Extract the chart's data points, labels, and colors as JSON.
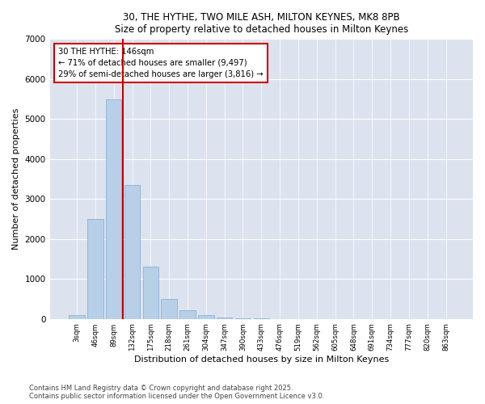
{
  "title1": "30, THE HYTHE, TWO MILE ASH, MILTON KEYNES, MK8 8PB",
  "title2": "Size of property relative to detached houses in Milton Keynes",
  "xlabel": "Distribution of detached houses by size in Milton Keynes",
  "ylabel": "Number of detached properties",
  "background_color": "#dce3ef",
  "bar_color": "#b8cfe8",
  "bar_edge_color": "#7aaad0",
  "categories": [
    "3sqm",
    "46sqm",
    "89sqm",
    "132sqm",
    "175sqm",
    "218sqm",
    "261sqm",
    "304sqm",
    "347sqm",
    "390sqm",
    "433sqm",
    "476sqm",
    "519sqm",
    "562sqm",
    "605sqm",
    "648sqm",
    "691sqm",
    "734sqm",
    "777sqm",
    "820sqm",
    "863sqm"
  ],
  "values": [
    100,
    2500,
    5500,
    3350,
    1300,
    490,
    215,
    95,
    42,
    18,
    5,
    3,
    0,
    0,
    0,
    0,
    0,
    0,
    0,
    0,
    0
  ],
  "vline_color": "#cc0000",
  "annotation_line1": "30 THE HYTHE: 146sqm",
  "annotation_line2": "← 71% of detached houses are smaller (9,497)",
  "annotation_line3": "29% of semi-detached houses are larger (3,816) →",
  "annotation_edge_color": "#cc0000",
  "ylim": [
    0,
    7000
  ],
  "yticks": [
    0,
    1000,
    2000,
    3000,
    4000,
    5000,
    6000,
    7000
  ],
  "grid_color": "#ffffff",
  "footer1": "Contains HM Land Registry data © Crown copyright and database right 2025.",
  "footer2": "Contains public sector information licensed under the Open Government Licence v3.0."
}
